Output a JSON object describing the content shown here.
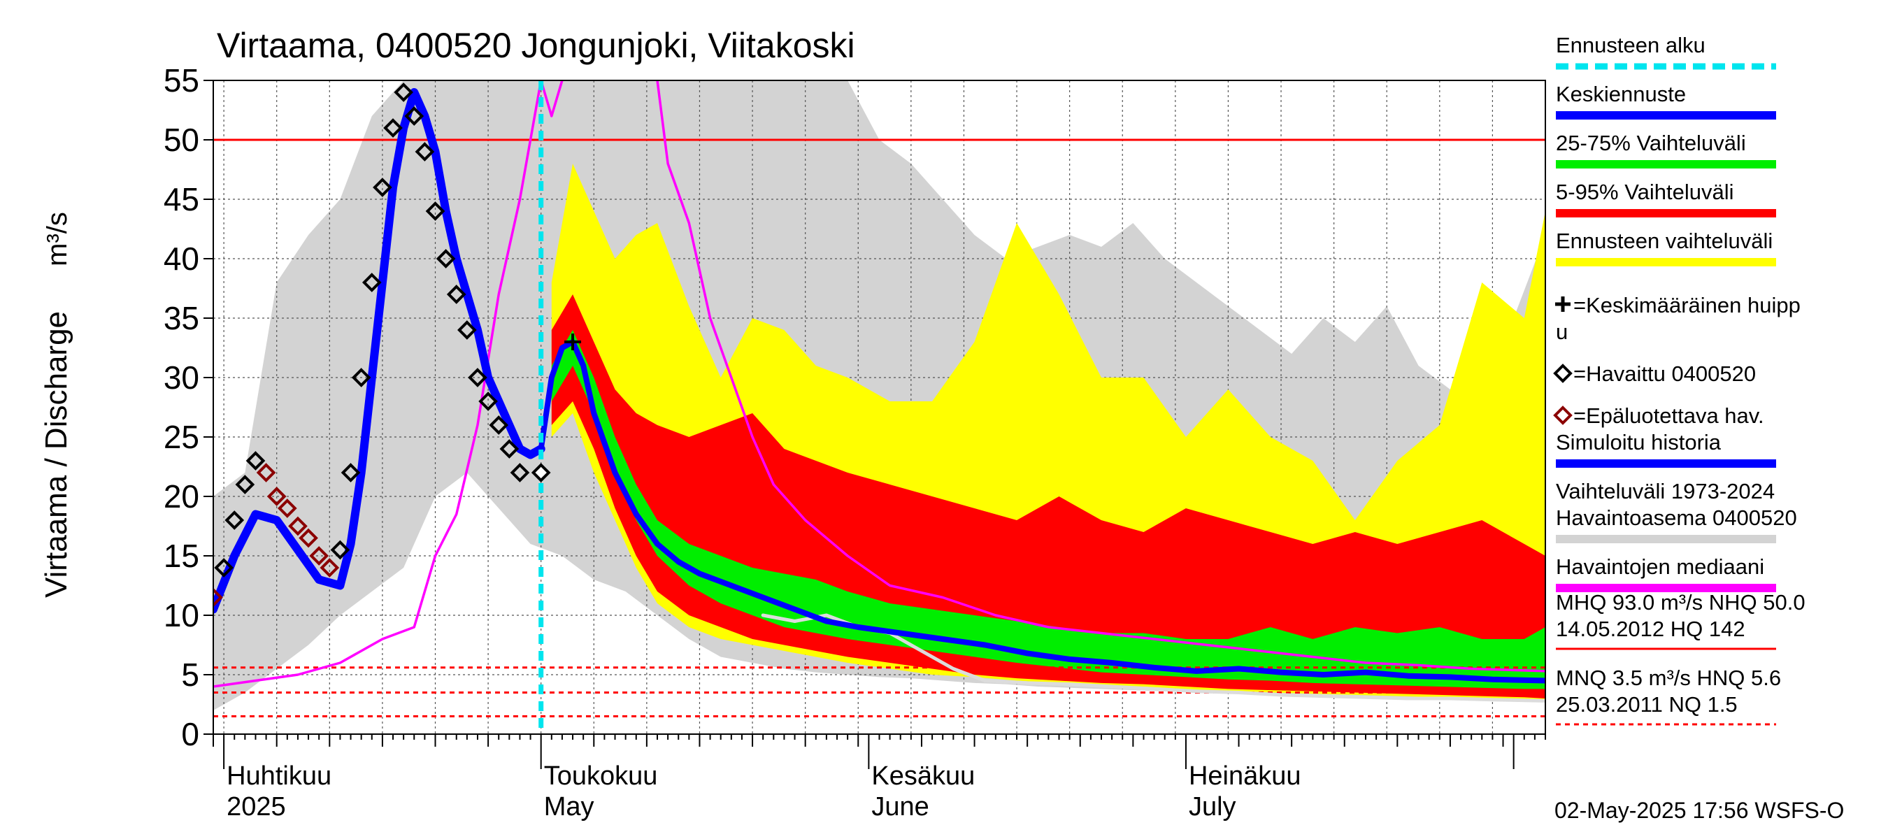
{
  "chart_data": {
    "type": "line",
    "title": "Virtaama, 0400520 Jongunjoki, Viitakoski",
    "ylabel": "Virtaama / Discharge",
    "yunit": "m³/s",
    "ylim": [
      0,
      55
    ],
    "yticks": [
      0,
      5,
      10,
      15,
      20,
      25,
      30,
      35,
      40,
      45,
      50,
      55
    ],
    "xlim": [
      "2025-03-31",
      "2025-08-04"
    ],
    "month_labels": [
      {
        "date": "2025-04-01",
        "fi": "Huhtikuu",
        "en": "2025"
      },
      {
        "date": "2025-05-01",
        "fi": "Toukokuu",
        "en": "May"
      },
      {
        "date": "2025-06-01",
        "fi": "Kesäkuu",
        "en": "June"
      },
      {
        "date": "2025-07-01",
        "fi": "Heinäkuu",
        "en": "July"
      }
    ],
    "forecast_start": "2025-05-01",
    "reference_lines": [
      {
        "name": "NHQ",
        "value": 50.0,
        "style": "solid",
        "color": "#ff0000"
      },
      {
        "name": "HNQ",
        "value": 5.6,
        "style": "dashed",
        "color": "#ff0000"
      },
      {
        "name": "MNQ",
        "value": 3.5,
        "style": "dashed",
        "color": "#ff0000"
      },
      {
        "name": "NQ",
        "value": 1.5,
        "style": "dashed",
        "color": "#ff0000"
      }
    ],
    "history_range_1973_2024": {
      "x": [
        "2025-03-31",
        "2025-04-03",
        "2025-04-06",
        "2025-04-09",
        "2025-04-12",
        "2025-04-15",
        "2025-04-18",
        "2025-04-21",
        "2025-04-24",
        "2025-04-27",
        "2025-04-30",
        "2025-05-03",
        "2025-05-06",
        "2025-05-09",
        "2025-05-12",
        "2025-05-15",
        "2025-05-18",
        "2025-05-21",
        "2025-05-24",
        "2025-05-27",
        "2025-05-30",
        "2025-06-02",
        "2025-06-05",
        "2025-06-08",
        "2025-06-11",
        "2025-06-14",
        "2025-06-17",
        "2025-06-20",
        "2025-06-23",
        "2025-06-26",
        "2025-06-29",
        "2025-07-02",
        "2025-07-05",
        "2025-07-08",
        "2025-07-11",
        "2025-07-14",
        "2025-07-17",
        "2025-07-20",
        "2025-07-23",
        "2025-07-26",
        "2025-07-29",
        "2025-08-01",
        "2025-08-04"
      ],
      "low": [
        2.0,
        3.5,
        5.5,
        7.5,
        10,
        12,
        14,
        20,
        22,
        19,
        16,
        15,
        13,
        12,
        10,
        8,
        6.5,
        6,
        5.5,
        5.2,
        5.0,
        4.8,
        4.7,
        4.5,
        4.3,
        4.2,
        4.0,
        3.9,
        3.8,
        3.7,
        3.6,
        3.5,
        3.5,
        3.4,
        3.3,
        3.3,
        3.2,
        3.1,
        3.0,
        3.0,
        2.9,
        2.8,
        2.8
      ],
      "high": [
        20,
        22,
        38,
        42,
        45,
        52,
        55,
        55,
        55,
        55,
        55,
        55,
        55,
        55,
        55,
        55,
        55,
        55,
        55,
        55,
        55,
        50,
        48,
        45,
        42,
        40,
        41,
        42,
        41,
        43,
        40,
        38,
        36,
        34,
        32,
        35,
        33,
        36,
        31,
        29,
        28,
        35,
        42
      ]
    },
    "forecast_range": {
      "x": [
        "2025-05-02",
        "2025-05-04",
        "2025-05-06",
        "2025-05-08",
        "2025-05-10",
        "2025-05-12",
        "2025-05-15",
        "2025-05-18",
        "2025-05-21",
        "2025-05-24",
        "2025-05-27",
        "2025-05-30",
        "2025-06-03",
        "2025-06-07",
        "2025-06-11",
        "2025-06-15",
        "2025-06-19",
        "2025-06-23",
        "2025-06-27",
        "2025-07-01",
        "2025-07-05",
        "2025-07-09",
        "2025-07-13",
        "2025-07-17",
        "2025-07-21",
        "2025-07-25",
        "2025-07-29",
        "2025-08-02",
        "2025-08-04"
      ],
      "low": [
        25,
        27,
        22,
        18,
        14,
        11,
        9,
        8,
        7.5,
        7,
        6.5,
        6,
        5.5,
        5,
        4.8,
        4.5,
        4.3,
        4.1,
        4.0,
        3.8,
        3.6,
        3.5,
        3.4,
        3.3,
        3.2,
        3.1,
        3.0,
        2.9,
        2.8
      ],
      "high": [
        38,
        48,
        44,
        40,
        42,
        43,
        36,
        30,
        35,
        34,
        31,
        30,
        28,
        28,
        33,
        43,
        37,
        30,
        30,
        25,
        29,
        25,
        23,
        18,
        23,
        26,
        38,
        35,
        44
      ]
    },
    "range_5_95": {
      "x": [
        "2025-05-02",
        "2025-05-04",
        "2025-05-06",
        "2025-05-08",
        "2025-05-10",
        "2025-05-12",
        "2025-05-15",
        "2025-05-18",
        "2025-05-21",
        "2025-05-24",
        "2025-05-27",
        "2025-05-30",
        "2025-06-03",
        "2025-06-07",
        "2025-06-11",
        "2025-06-15",
        "2025-06-19",
        "2025-06-23",
        "2025-06-27",
        "2025-07-01",
        "2025-07-05",
        "2025-07-09",
        "2025-07-13",
        "2025-07-17",
        "2025-07-21",
        "2025-07-25",
        "2025-07-29",
        "2025-08-02",
        "2025-08-04"
      ],
      "low": [
        26,
        28,
        24,
        19,
        15,
        12,
        10,
        9,
        8,
        7.5,
        7,
        6.5,
        6,
        5.5,
        5,
        4.7,
        4.5,
        4.3,
        4.2,
        4.0,
        3.8,
        3.7,
        3.6,
        3.5,
        3.4,
        3.3,
        3.2,
        3.1,
        3.0
      ],
      "high": [
        34,
        37,
        33,
        29,
        27,
        26,
        25,
        26,
        27,
        24,
        23,
        22,
        21,
        20,
        19,
        18,
        20,
        18,
        17,
        19,
        18,
        17,
        16,
        17,
        16,
        17,
        18,
        16,
        15
      ]
    },
    "range_25_75": {
      "x": [
        "2025-05-02",
        "2025-05-04",
        "2025-05-06",
        "2025-05-08",
        "2025-05-10",
        "2025-05-12",
        "2025-05-15",
        "2025-05-18",
        "2025-05-21",
        "2025-05-24",
        "2025-05-27",
        "2025-05-30",
        "2025-06-03",
        "2025-06-07",
        "2025-06-11",
        "2025-06-15",
        "2025-06-19",
        "2025-06-23",
        "2025-06-27",
        "2025-07-01",
        "2025-07-05",
        "2025-07-09",
        "2025-07-13",
        "2025-07-17",
        "2025-07-21",
        "2025-07-25",
        "2025-07-29",
        "2025-08-02",
        "2025-08-04"
      ],
      "low": [
        28,
        31,
        27,
        22,
        18,
        15,
        12.5,
        11,
        10,
        9,
        8.5,
        8,
        7.5,
        7,
        6.5,
        6,
        5.6,
        5.2,
        5.0,
        4.8,
        4.6,
        4.5,
        4.3,
        4.2,
        4.1,
        4.0,
        3.9,
        3.8,
        3.8
      ],
      "high": [
        31,
        34,
        30,
        25,
        21,
        18,
        16,
        15,
        14,
        13.5,
        13,
        12,
        11,
        10.5,
        10,
        9.5,
        9,
        8.5,
        8.5,
        8,
        8,
        9,
        8,
        9,
        8.5,
        9,
        8,
        8,
        9
      ]
    },
    "mean_forecast": {
      "x": [
        "2025-05-01",
        "2025-05-02",
        "2025-05-03",
        "2025-05-04",
        "2025-05-05",
        "2025-05-06",
        "2025-05-08",
        "2025-05-10",
        "2025-05-12",
        "2025-05-14",
        "2025-05-16",
        "2025-05-19",
        "2025-05-22",
        "2025-05-25",
        "2025-05-28",
        "2025-05-31",
        "2025-06-04",
        "2025-06-08",
        "2025-06-12",
        "2025-06-16",
        "2025-06-20",
        "2025-06-24",
        "2025-06-28",
        "2025-07-02",
        "2025-07-06",
        "2025-07-10",
        "2025-07-14",
        "2025-07-18",
        "2025-07-22",
        "2025-07-26",
        "2025-07-30",
        "2025-08-04"
      ],
      "values": [
        24,
        30,
        32.5,
        33,
        31,
        27,
        22,
        18.5,
        16,
        14.5,
        13.5,
        12.5,
        11.5,
        10.5,
        9.5,
        9,
        8.5,
        8,
        7.5,
        6.8,
        6.3,
        6,
        5.6,
        5.3,
        5.5,
        5.2,
        5,
        5.2,
        4.9,
        4.8,
        4.6,
        4.5
      ]
    },
    "mean_peak": {
      "x": "2025-05-04",
      "y": 33
    },
    "observed": {
      "x": [
        "2025-03-31",
        "2025-04-01",
        "2025-04-02",
        "2025-04-03",
        "2025-04-04",
        "2025-04-05",
        "2025-04-06",
        "2025-04-07",
        "2025-04-08",
        "2025-04-09",
        "2025-04-10",
        "2025-04-11",
        "2025-04-12",
        "2025-04-13",
        "2025-04-14",
        "2025-04-15",
        "2025-04-16",
        "2025-04-17",
        "2025-04-18",
        "2025-04-19",
        "2025-04-20",
        "2025-04-21",
        "2025-04-22",
        "2025-04-23",
        "2025-04-24",
        "2025-04-25",
        "2025-04-26",
        "2025-04-27",
        "2025-04-28",
        "2025-04-29",
        "2025-04-30",
        "2025-05-01"
      ],
      "values": [
        11.5,
        14,
        18,
        21,
        23,
        22,
        20,
        19,
        17.5,
        16.5,
        15,
        14,
        15.5,
        22,
        30,
        38,
        46,
        51,
        54,
        52,
        49,
        44,
        40,
        37,
        34,
        30,
        28,
        26,
        24,
        22,
        null,
        null
      ],
      "unreliable": [
        true,
        false,
        false,
        false,
        false,
        true,
        true,
        true,
        true,
        true,
        true,
        true,
        false,
        false,
        false,
        false,
        false,
        false,
        false,
        false,
        false,
        false,
        false,
        false,
        false,
        false,
        false,
        false,
        false,
        false,
        false,
        false
      ]
    },
    "simulated_history": {
      "x": [
        "2025-03-31",
        "2025-04-02",
        "2025-04-04",
        "2025-04-06",
        "2025-04-08",
        "2025-04-10",
        "2025-04-12",
        "2025-04-13",
        "2025-04-14",
        "2025-04-15",
        "2025-04-16",
        "2025-04-17",
        "2025-04-18",
        "2025-04-19",
        "2025-04-20",
        "2025-04-21",
        "2025-04-22",
        "2025-04-23",
        "2025-04-24",
        "2025-04-25",
        "2025-04-26",
        "2025-04-27",
        "2025-04-28",
        "2025-04-29",
        "2025-04-30",
        "2025-05-01"
      ],
      "values": [
        10.5,
        15,
        18.5,
        18,
        15.5,
        13,
        12.5,
        16,
        22,
        30,
        38,
        46,
        51,
        54,
        52,
        49,
        44,
        40,
        37,
        34,
        30,
        28,
        26,
        24,
        23.5,
        24
      ]
    },
    "observed_median": {
      "x": [
        "2025-03-31",
        "2025-04-04",
        "2025-04-08",
        "2025-04-12",
        "2025-04-16",
        "2025-04-19",
        "2025-04-21",
        "2025-04-23",
        "2025-04-25",
        "2025-04-27",
        "2025-04-29",
        "2025-05-01",
        "2025-05-02",
        "2025-05-03",
        "2025-05-05",
        "2025-05-08",
        "2025-05-12",
        "2025-05-13",
        "2025-05-15",
        "2025-05-17",
        "2025-05-19",
        "2025-05-21",
        "2025-05-23",
        "2025-05-26",
        "2025-05-30",
        "2025-06-03",
        "2025-06-08",
        "2025-06-13",
        "2025-06-18",
        "2025-06-23",
        "2025-06-28",
        "2025-07-03",
        "2025-07-08",
        "2025-07-13",
        "2025-07-18",
        "2025-07-23",
        "2025-07-28",
        "2025-08-04"
      ],
      "values": [
        4,
        4.5,
        5,
        6,
        8,
        9,
        15,
        18.5,
        26,
        37,
        45,
        55,
        52,
        55,
        60,
        64,
        55,
        48,
        43,
        35,
        30,
        25,
        21,
        18,
        15,
        12.5,
        11.5,
        10,
        9,
        8.5,
        8,
        7.5,
        7,
        6.5,
        6,
        5.8,
        5.5,
        5.3
      ]
    },
    "historical_grey_line": {
      "x": [
        "2025-05-22",
        "2025-05-25",
        "2025-05-28",
        "2025-05-31",
        "2025-06-03",
        "2025-06-06",
        "2025-06-09",
        "2025-06-12",
        "2025-06-16",
        "2025-06-20",
        "2025-06-24",
        "2025-06-28",
        "2025-07-02",
        "2025-07-06",
        "2025-07-10",
        "2025-07-14",
        "2025-07-18",
        "2025-07-22",
        "2025-07-26",
        "2025-07-30",
        "2025-08-04"
      ],
      "values": [
        10,
        9.5,
        10,
        9,
        8.5,
        7,
        5.5,
        4.5,
        4.3,
        4.2,
        4,
        3.8,
        3.6,
        3.5,
        3.3,
        3.2,
        3.1,
        3,
        3,
        2.9,
        2.8
      ]
    },
    "stats": {
      "line1": "MHQ 93.0 m³/s NHQ 50.0",
      "line2": "14.05.2012 HQ  142",
      "line3": "MNQ  3.5 m³/s HNQ  5.6",
      "line4": "25.03.2011 NQ  1.5"
    },
    "legend": [
      {
        "label": "Ennusteen alku",
        "color": "#00e5ee",
        "kind": "dashed"
      },
      {
        "label": "Keskiennuste",
        "color": "#0000ff",
        "kind": "line"
      },
      {
        "label": "25-75% Vaihteluväli",
        "color": "#00ee00",
        "kind": "line"
      },
      {
        "label": "5-95% Vaihteluväli",
        "color": "#ff0000",
        "kind": "line"
      },
      {
        "label": "Ennusteen vaihteluväli",
        "color": "#ffff00",
        "kind": "line"
      },
      {
        "label": "=Keskimääräinen huipp",
        "label2": "u",
        "color": "#000000",
        "kind": "plus"
      },
      {
        "label": "=Havaittu 0400520",
        "color": "#000000",
        "kind": "diamond"
      },
      {
        "label": "=Epäluotettava hav.",
        "color": "#8b0000",
        "kind": "diamond"
      },
      {
        "label": "Simuloitu historia",
        "color": "#0000ff",
        "kind": "line"
      },
      {
        "label": "Vaihteluväli 1973-2024",
        "label2": " Havaintoasema 0400520",
        "color": "#d3d3d3",
        "kind": "line"
      },
      {
        "label": "Havaintojen mediaani",
        "color": "#ff00ff",
        "kind": "line"
      }
    ],
    "footer": "02-May-2025 17:56 WSFS-O"
  }
}
